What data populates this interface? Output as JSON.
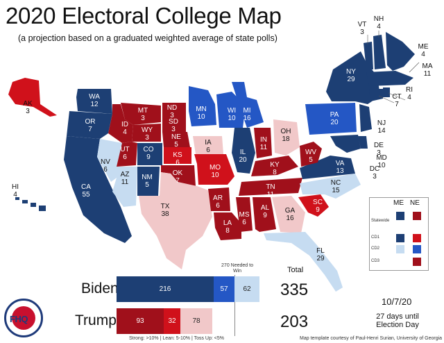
{
  "title": "2020 Electoral College Map",
  "subtitle": "(a projection based on a graduated weighted average of state polls)",
  "colors": {
    "strong_dem": "#1d3f74",
    "lean_dem": "#2457c5",
    "tossup_dem": "#c6dcf1",
    "tossup_rep": "#f1c8c9",
    "lean_rep": "#d0111b",
    "strong_rep": "#a0101b"
  },
  "states": [
    {
      "abbr": "WA",
      "ev": "12"
    },
    {
      "abbr": "OR",
      "ev": "7"
    },
    {
      "abbr": "CA",
      "ev": "55"
    },
    {
      "abbr": "NV",
      "ev": "6"
    },
    {
      "abbr": "ID",
      "ev": "4"
    },
    {
      "abbr": "MT",
      "ev": "3"
    },
    {
      "abbr": "WY",
      "ev": "3"
    },
    {
      "abbr": "UT",
      "ev": "6"
    },
    {
      "abbr": "AZ",
      "ev": "11"
    },
    {
      "abbr": "CO",
      "ev": "9"
    },
    {
      "abbr": "NM",
      "ev": "5"
    },
    {
      "abbr": "ND",
      "ev": "3"
    },
    {
      "abbr": "SD",
      "ev": "3"
    },
    {
      "abbr": "NE",
      "ev": "5"
    },
    {
      "abbr": "KS",
      "ev": "6"
    },
    {
      "abbr": "OK",
      "ev": "7"
    },
    {
      "abbr": "TX",
      "ev": "38"
    },
    {
      "abbr": "MN",
      "ev": "10"
    },
    {
      "abbr": "IA",
      "ev": "6"
    },
    {
      "abbr": "MO",
      "ev": "10"
    },
    {
      "abbr": "AR",
      "ev": "6"
    },
    {
      "abbr": "LA",
      "ev": "8"
    },
    {
      "abbr": "WI",
      "ev": "10"
    },
    {
      "abbr": "IL",
      "ev": "20"
    },
    {
      "abbr": "MI",
      "ev": "16"
    },
    {
      "abbr": "IN",
      "ev": "11"
    },
    {
      "abbr": "OH",
      "ev": "18"
    },
    {
      "abbr": "KY",
      "ev": "8"
    },
    {
      "abbr": "TN",
      "ev": "11"
    },
    {
      "abbr": "MS",
      "ev": "6"
    },
    {
      "abbr": "AL",
      "ev": "9"
    },
    {
      "abbr": "GA",
      "ev": "16"
    },
    {
      "abbr": "FL",
      "ev": "29"
    },
    {
      "abbr": "SC",
      "ev": "9"
    },
    {
      "abbr": "NC",
      "ev": "15"
    },
    {
      "abbr": "VA",
      "ev": "13"
    },
    {
      "abbr": "WV",
      "ev": "5"
    },
    {
      "abbr": "PA",
      "ev": "20"
    },
    {
      "abbr": "NY",
      "ev": "29"
    },
    {
      "abbr": "VT",
      "ev": "3"
    },
    {
      "abbr": "NH",
      "ev": "4"
    },
    {
      "abbr": "ME",
      "ev": "4"
    },
    {
      "abbr": "MA",
      "ev": "11"
    },
    {
      "abbr": "RI",
      "ev": "4"
    },
    {
      "abbr": "CT",
      "ev": "7"
    },
    {
      "abbr": "NJ",
      "ev": "14"
    },
    {
      "abbr": "DE",
      "ev": "3"
    },
    {
      "abbr": "MD",
      "ev": "10"
    },
    {
      "abbr": "DC",
      "ev": "3"
    },
    {
      "abbr": "AK",
      "ev": "3"
    },
    {
      "abbr": "HI",
      "ev": "4"
    }
  ],
  "summary": {
    "needed_label": "270 Needed to Win",
    "total_label": "Total",
    "biden": {
      "name": "Biden",
      "strong": "216",
      "lean": "57",
      "tossup": "62",
      "total": "335"
    },
    "trump": {
      "name": "Trump",
      "strong": "93",
      "lean": "32",
      "tossup": "78",
      "total": "203"
    },
    "key": "Strong: >10%  |  Lean: 5-10%  |  Toss Up: <5%"
  },
  "legend": {
    "col_me": "ME",
    "col_ne": "NE",
    "rows": [
      "Statewide",
      "CD1",
      "CD2",
      "CD3"
    ]
  },
  "date": "10/7/20",
  "days_until": "27 days until Election Day",
  "credit": "Map template courtesy of Paul-Henri Surian, University of Georgia",
  "logo_text": "FHQ"
}
